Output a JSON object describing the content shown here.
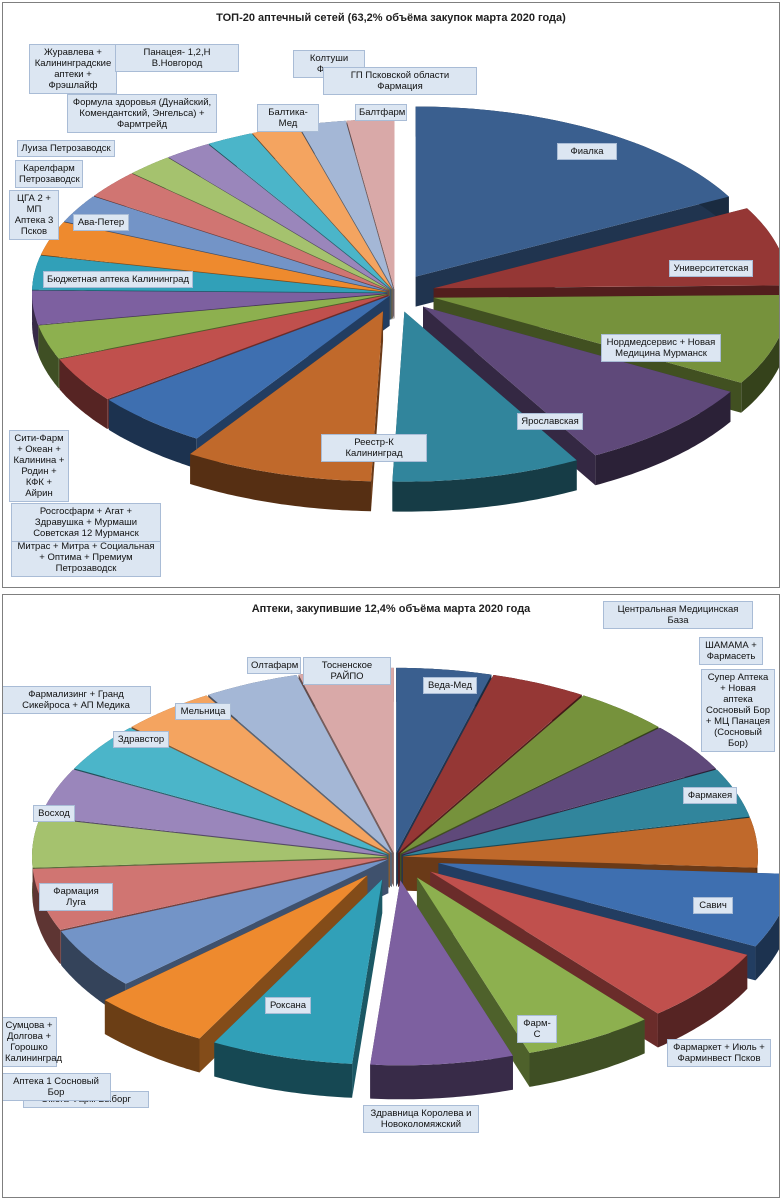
{
  "chart_data": [
    {
      "type": "pie",
      "title": "ТОП-20 аптечный сетей (63,2% объёма закупок марта 2020 года)",
      "slices": [
        {
          "label": "Фиалка",
          "value": 16,
          "color": "#3a5f8f",
          "explode": 1
        },
        {
          "label": "Университетская",
          "value": 7,
          "color": "#953735",
          "explode": 1
        },
        {
          "label": "Нордмедсервис + Новая Медицина Мурманск",
          "value": 8,
          "color": "#76923c",
          "explode": 1
        },
        {
          "label": "Ярославская",
          "value": 8,
          "color": "#5f497a",
          "explode": 1
        },
        {
          "label": "Реестр-К Калининград",
          "value": 8,
          "color": "#31859c",
          "explode": 1
        },
        {
          "label": "Митрас + Митра + Социальная + Оптима + Премиум Петрозаводск",
          "value": 8,
          "color": "#c0692b",
          "explode": 1
        },
        {
          "label": "Росгосфарм + Агат + Здравушка + Мурмаши Советская 12 Мурманск",
          "value": 5,
          "color": "#3e6fb0",
          "explode": 0
        },
        {
          "label": "Сити-Фарм + Океан + Калинина + Родин + КФК + Айрин",
          "value": 4,
          "color": "#c0504d",
          "explode": 0
        },
        {
          "label": "Бюджетная аптека Калининград",
          "value": 3,
          "color": "#8db04f",
          "explode": 0
        },
        {
          "label": "ЦГА 2 + МП Аптека 3 Псков",
          "value": 3,
          "color": "#7d60a0",
          "explode": 0
        },
        {
          "label": "Ава-Петер",
          "value": 3,
          "color": "#31a0b8",
          "explode": 0
        },
        {
          "label": "Карелфарм Петрозаводск",
          "value": 3,
          "color": "#ee8a2e",
          "explode": 0
        },
        {
          "label": "Луиза Петрозаводск",
          "value": 2.5,
          "color": "#7394c7",
          "explode": 0
        },
        {
          "label": "Формула здоровья (Дунайский, Комендантский, Энгельса) + Фармтрейд",
          "value": 2.5,
          "color": "#d07572",
          "explode": 0
        },
        {
          "label": "Журавлева + Калининградские аптеки + Фрэшлайф",
          "value": 2,
          "color": "#a5c26e",
          "explode": 0
        },
        {
          "label": "Панацея- 1,2,Н В.Новгород",
          "value": 2,
          "color": "#9a86bb",
          "explode": 0
        },
        {
          "label": "Балтика-Мед",
          "value": 2,
          "color": "#4bb5c9",
          "explode": 0
        },
        {
          "label": "Колтуши Фарм",
          "value": 2,
          "color": "#f4a460",
          "explode": 0
        },
        {
          "label": "ГП Псковской области Фармация",
          "value": 2,
          "color": "#a4b7d6",
          "explode": 0
        },
        {
          "label": "Балтфарм",
          "value": 2,
          "color": "#d9a9a8",
          "explode": 0
        }
      ]
    },
    {
      "type": "pie",
      "title": "Аптеки, закупившие 12,4% объёма марта 2020 года",
      "slices": [
        {
          "label": "Веда-Мед",
          "value": 4,
          "color": "#3a5f8f",
          "explode": 0
        },
        {
          "label": "Центральная Медицинская База",
          "value": 4,
          "color": "#953735",
          "explode": 0
        },
        {
          "label": "ШАМАМА + Фармасеть",
          "value": 4,
          "color": "#76923c",
          "explode": 0
        },
        {
          "label": "Фармакея",
          "value": 4,
          "color": "#5f497a",
          "explode": 0
        },
        {
          "label": "Супер Аптека + Новая аптека Сосновый Бор + МЦ Панацея (Сосновый Бор)",
          "value": 4,
          "color": "#31859c",
          "explode": 0
        },
        {
          "label": "Савич",
          "value": 4,
          "color": "#c0692b",
          "explode": 0
        },
        {
          "label": "Фармаркет + Июль + Фарминвест Псков",
          "value": 6,
          "color": "#3e6fb0",
          "explode": 1
        },
        {
          "label": "Фарм-С",
          "value": 6,
          "color": "#c0504d",
          "explode": 1
        },
        {
          "label": "Здравница Королева и Новоколомяжский",
          "value": 5.5,
          "color": "#8db04f",
          "explode": 1
        },
        {
          "label": "Роксана",
          "value": 6,
          "color": "#7d60a0",
          "explode": 1
        },
        {
          "label": "Омега Фарм Выборг",
          "value": 6,
          "color": "#31a0b8",
          "explode": 1
        },
        {
          "label": "Аптека 1 Сосновый Бор",
          "value": 5,
          "color": "#ee8a2e",
          "explode": 1
        },
        {
          "label": "Сумцова + Долгова + Горошко Калининград",
          "value": 5,
          "color": "#7394c7",
          "explode": 0
        },
        {
          "label": "Фармация Луга",
          "value": 5,
          "color": "#d07572",
          "explode": 0
        },
        {
          "label": "Восход",
          "value": 4,
          "color": "#a5c26e",
          "explode": 0
        },
        {
          "label": "Фармализинг + Гранд Сикейроса + АП Медика",
          "value": 4,
          "color": "#9a86bb",
          "explode": 0
        },
        {
          "label": "Здравстор",
          "value": 4,
          "color": "#4bb5c9",
          "explode": 0
        },
        {
          "label": "Мельница",
          "value": 4,
          "color": "#f4a460",
          "explode": 0
        },
        {
          "label": "Олтафарм",
          "value": 4,
          "color": "#a4b7d6",
          "explode": 0
        },
        {
          "label": "Тосненское РАЙПО",
          "value": 4,
          "color": "#d9a9a8",
          "explode": 0
        }
      ]
    }
  ]
}
